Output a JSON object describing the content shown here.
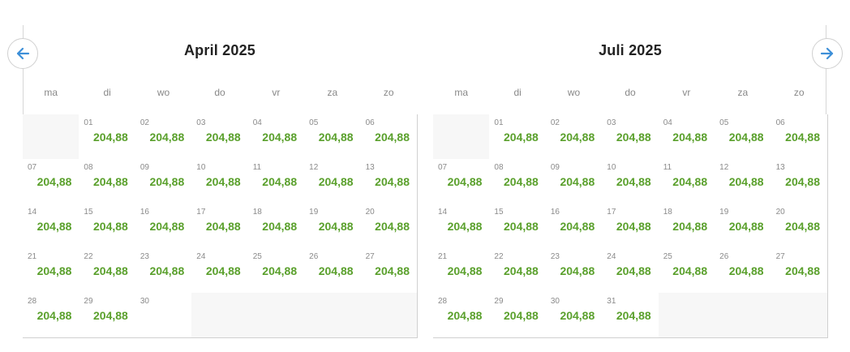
{
  "navigation": {
    "prev_icon": "arrow-left-icon",
    "next_icon": "arrow-right-icon",
    "accent_color": "#3d8fd8"
  },
  "weekday_labels": [
    "ma",
    "di",
    "wo",
    "do",
    "vr",
    "za",
    "zo"
  ],
  "price_color": "#5aa02c",
  "calendars": [
    {
      "title": "April 2025",
      "leading_blanks": 1,
      "days": [
        {
          "day": "01",
          "price": "204,88"
        },
        {
          "day": "02",
          "price": "204,88"
        },
        {
          "day": "03",
          "price": "204,88"
        },
        {
          "day": "04",
          "price": "204,88"
        },
        {
          "day": "05",
          "price": "204,88"
        },
        {
          "day": "06",
          "price": "204,88"
        },
        {
          "day": "07",
          "price": "204,88"
        },
        {
          "day": "08",
          "price": "204,88"
        },
        {
          "day": "09",
          "price": "204,88"
        },
        {
          "day": "10",
          "price": "204,88"
        },
        {
          "day": "11",
          "price": "204,88"
        },
        {
          "day": "12",
          "price": "204,88"
        },
        {
          "day": "13",
          "price": "204,88"
        },
        {
          "day": "14",
          "price": "204,88"
        },
        {
          "day": "15",
          "price": "204,88"
        },
        {
          "day": "16",
          "price": "204,88"
        },
        {
          "day": "17",
          "price": "204,88"
        },
        {
          "day": "18",
          "price": "204,88"
        },
        {
          "day": "19",
          "price": "204,88"
        },
        {
          "day": "20",
          "price": "204,88"
        },
        {
          "day": "21",
          "price": "204,88"
        },
        {
          "day": "22",
          "price": "204,88"
        },
        {
          "day": "23",
          "price": "204,88"
        },
        {
          "day": "24",
          "price": "204,88"
        },
        {
          "day": "25",
          "price": "204,88"
        },
        {
          "day": "26",
          "price": "204,88"
        },
        {
          "day": "27",
          "price": "204,88"
        },
        {
          "day": "28",
          "price": "204,88"
        },
        {
          "day": "29",
          "price": "204,88"
        },
        {
          "day": "30",
          "price": ""
        }
      ]
    },
    {
      "title": "Juli 2025",
      "leading_blanks": 1,
      "days": [
        {
          "day": "01",
          "price": "204,88"
        },
        {
          "day": "02",
          "price": "204,88"
        },
        {
          "day": "03",
          "price": "204,88"
        },
        {
          "day": "04",
          "price": "204,88"
        },
        {
          "day": "05",
          "price": "204,88"
        },
        {
          "day": "06",
          "price": "204,88"
        },
        {
          "day": "07",
          "price": "204,88"
        },
        {
          "day": "08",
          "price": "204,88"
        },
        {
          "day": "09",
          "price": "204,88"
        },
        {
          "day": "10",
          "price": "204,88"
        },
        {
          "day": "11",
          "price": "204,88"
        },
        {
          "day": "12",
          "price": "204,88"
        },
        {
          "day": "13",
          "price": "204,88"
        },
        {
          "day": "14",
          "price": "204,88"
        },
        {
          "day": "15",
          "price": "204,88"
        },
        {
          "day": "16",
          "price": "204,88"
        },
        {
          "day": "17",
          "price": "204,88"
        },
        {
          "day": "18",
          "price": "204,88"
        },
        {
          "day": "19",
          "price": "204,88"
        },
        {
          "day": "20",
          "price": "204,88"
        },
        {
          "day": "21",
          "price": "204,88"
        },
        {
          "day": "22",
          "price": "204,88"
        },
        {
          "day": "23",
          "price": "204,88"
        },
        {
          "day": "24",
          "price": "204,88"
        },
        {
          "day": "25",
          "price": "204,88"
        },
        {
          "day": "26",
          "price": "204,88"
        },
        {
          "day": "27",
          "price": "204,88"
        },
        {
          "day": "28",
          "price": "204,88"
        },
        {
          "day": "29",
          "price": "204,88"
        },
        {
          "day": "30",
          "price": "204,88"
        },
        {
          "day": "31",
          "price": "204,88"
        }
      ]
    }
  ]
}
